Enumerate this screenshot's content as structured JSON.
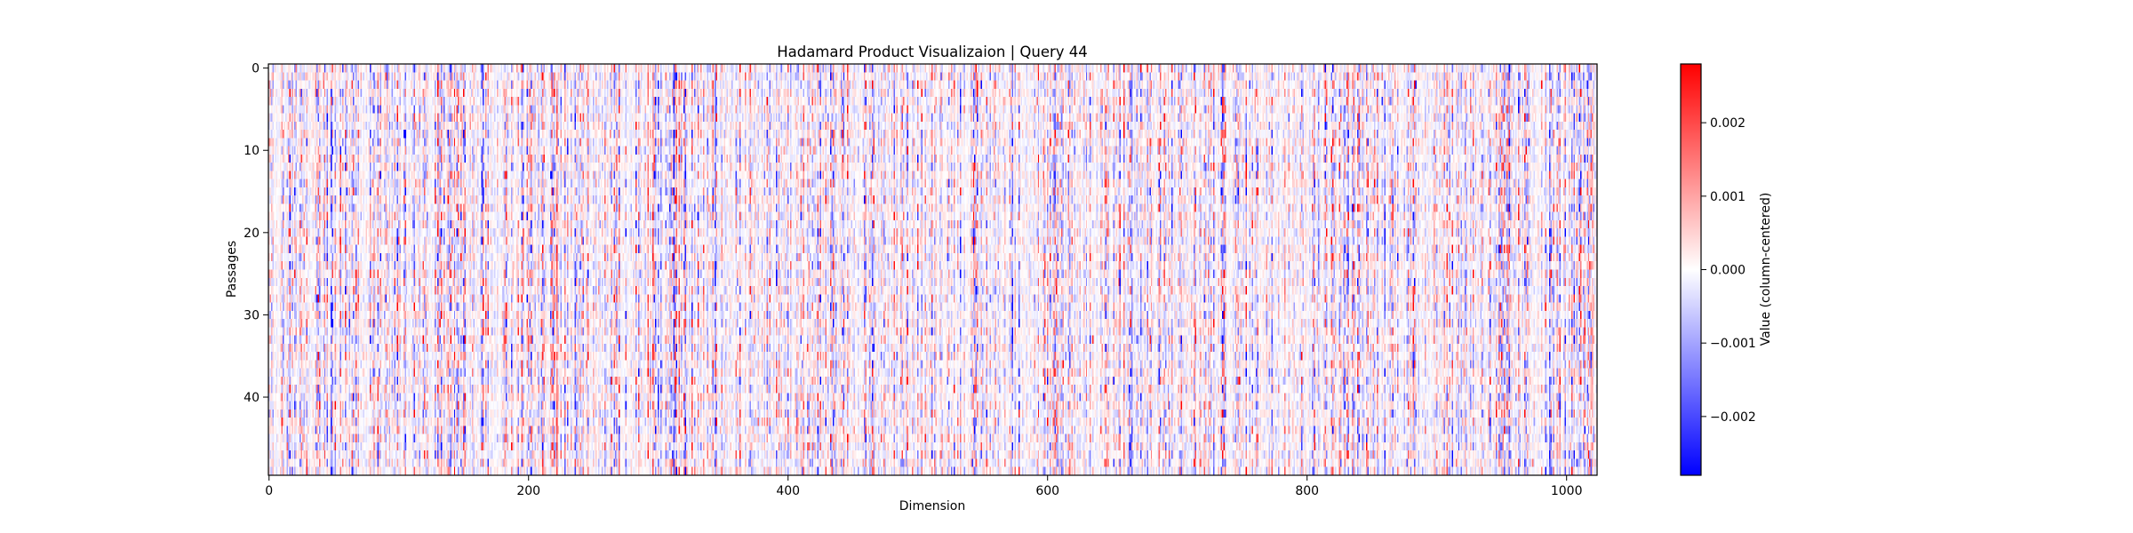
{
  "chart_data": {
    "type": "heatmap",
    "title": "Hadamard Product Visualizaion | Query 44",
    "xlabel": "Dimension",
    "ylabel": "Passages",
    "x_ticks": [
      0,
      200,
      400,
      600,
      800,
      1000
    ],
    "y_ticks": [
      0,
      10,
      20,
      30,
      40
    ],
    "n_rows": 50,
    "n_cols": 1024,
    "x_range": [
      -0.5,
      1023.5
    ],
    "y_range": [
      -0.5,
      49.5
    ],
    "y_inverted": true,
    "colormap": "bwr",
    "colormap_colors": [
      "#0000ff",
      "#ffffff",
      "#ff0000"
    ],
    "value_range": [
      -0.0028,
      0.0028
    ],
    "grid": false,
    "colorbar": {
      "label": "Value (column-centered)",
      "ticks": [
        -0.002,
        -0.001,
        0.0,
        0.001,
        0.002
      ],
      "tick_labels": [
        "−0.002",
        "−0.001",
        "0.000",
        "0.001",
        "0.002"
      ],
      "position": "right"
    }
  }
}
